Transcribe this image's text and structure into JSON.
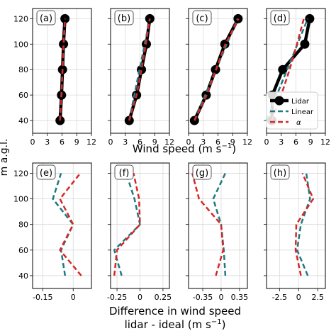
{
  "figure": {
    "ylabel": "m a.g.l.",
    "top_xlabel_main": "Wind speed (m s",
    "top_xlabel_sup": "−1",
    "top_xlabel_end": ")",
    "bottom_xlabel_line1": "Difference in wind speed",
    "bottom_xlabel_line2_main": "lidar - ideal (m s",
    "bottom_xlabel_line2_sup": "−1",
    "bottom_xlabel_line2_end": ")"
  },
  "colors": {
    "lidar": "#000000",
    "linear": "#1f7a80",
    "alpha": "#d62728",
    "grid": "#d9d9d9"
  },
  "legend": {
    "lidar": "Lidar",
    "linear": "Linear",
    "alpha": "α",
    "placement": "lower-right of panel (d)"
  },
  "chart_data": [
    {
      "type": "line",
      "panel": "(a)",
      "xlim": [
        0,
        12
      ],
      "ylim": [
        30,
        128
      ],
      "xticks": [
        0,
        3,
        6,
        9,
        12
      ],
      "xticklabels": [
        "0",
        "3",
        "6",
        "9",
        "12"
      ],
      "yticks": [
        40,
        60,
        80,
        100,
        120
      ],
      "yticklabels": [
        "40",
        "60",
        "80",
        "100",
        "120"
      ],
      "grid": true,
      "series": [
        {
          "name": "Lidar",
          "x": [
            5.6,
            5.9,
            6.1,
            6.3,
            6.6
          ],
          "y": [
            40,
            60,
            80,
            100,
            120
          ]
        },
        {
          "name": "Linear",
          "x": [
            5.6,
            5.85,
            6.1,
            6.35,
            6.6
          ],
          "y": [
            40,
            60,
            80,
            100,
            120
          ]
        },
        {
          "name": "α",
          "x": [
            5.6,
            5.9,
            6.1,
            6.3,
            6.6
          ],
          "y": [
            40,
            60,
            80,
            100,
            120
          ]
        }
      ]
    },
    {
      "type": "line",
      "panel": "(b)",
      "xlim": [
        0,
        12
      ],
      "ylim": [
        30,
        128
      ],
      "xticks": [
        0,
        3,
        6,
        9,
        12
      ],
      "xticklabels": [
        "0",
        "3",
        "6",
        "9",
        "12"
      ],
      "yticks": [
        40,
        60,
        80,
        100,
        120
      ],
      "yticklabels": [],
      "grid": true,
      "series": [
        {
          "name": "Lidar",
          "x": [
            3.8,
            5.3,
            6.3,
            7.3,
            8.0
          ],
          "y": [
            40,
            60,
            80,
            100,
            120
          ]
        },
        {
          "name": "Linear",
          "x": [
            3.8,
            4.85,
            5.9,
            6.95,
            8.0
          ],
          "y": [
            40,
            60,
            80,
            100,
            120
          ]
        },
        {
          "name": "α",
          "x": [
            3.8,
            5.3,
            6.3,
            7.2,
            8.0
          ],
          "y": [
            40,
            60,
            80,
            100,
            120
          ]
        }
      ]
    },
    {
      "type": "line",
      "panel": "(c)",
      "xlim": [
        0,
        12
      ],
      "ylim": [
        30,
        128
      ],
      "xticks": [
        0,
        3,
        6,
        9,
        12
      ],
      "xticklabels": [
        "0",
        "3",
        "6",
        "9",
        "12"
      ],
      "yticks": [
        40,
        60,
        80,
        100,
        120
      ],
      "yticklabels": [],
      "grid": true,
      "series": [
        {
          "name": "Lidar",
          "x": [
            1.2,
            3.6,
            5.5,
            7.4,
            10.1
          ],
          "y": [
            40,
            60,
            80,
            100,
            120
          ]
        },
        {
          "name": "Linear",
          "x": [
            1.2,
            3.4,
            5.6,
            7.8,
            10.0
          ],
          "y": [
            40,
            60,
            80,
            100,
            120
          ]
        },
        {
          "name": "α",
          "x": [
            1.2,
            3.7,
            5.6,
            7.5,
            10.2
          ],
          "y": [
            40,
            60,
            80,
            100,
            120
          ]
        }
      ]
    },
    {
      "type": "line",
      "panel": "(d)",
      "xlim": [
        0,
        12
      ],
      "ylim": [
        30,
        128
      ],
      "xticks": [
        0,
        3,
        6,
        9,
        12
      ],
      "xticklabels": [
        "0",
        "3",
        "6",
        "9",
        "12"
      ],
      "yticks": [
        40,
        60,
        80,
        100,
        120
      ],
      "yticklabels": [],
      "grid": true,
      "series": [
        {
          "name": "Lidar",
          "x": [
            1.1,
            1.2,
            3.3,
            7.8,
            8.8
          ],
          "y": [
            40,
            60,
            80,
            100,
            120
          ]
        },
        {
          "name": "Linear",
          "x": [
            0.0,
            2.1,
            4.2,
            6.3,
            8.4
          ],
          "y": [
            40,
            60,
            80,
            100,
            120
          ]
        },
        {
          "name": "α",
          "x": [
            1.1,
            3.0,
            4.7,
            6.2,
            7.6
          ],
          "y": [
            40,
            60,
            80,
            100,
            120
          ]
        }
      ]
    },
    {
      "type": "line",
      "panel": "(e)",
      "xlim": [
        -0.2,
        0.09
      ],
      "ylim": [
        30,
        128
      ],
      "xticks": [
        -0.15,
        0
      ],
      "xticklabels": [
        "-0.15",
        "0"
      ],
      "yticks": [
        40,
        60,
        80,
        100,
        120
      ],
      "yticklabels": [
        "40",
        "60",
        "80",
        "100",
        "120"
      ],
      "grid": true,
      "series": [
        {
          "name": "Linear",
          "x": [
            -0.04,
            -0.06,
            0.0,
            -0.1,
            -0.06
          ],
          "y": [
            40,
            60,
            80,
            100,
            120
          ]
        },
        {
          "name": "α",
          "x": [
            0.04,
            -0.065,
            0.0,
            -0.065,
            0.035
          ],
          "y": [
            40,
            60,
            80,
            100,
            120
          ]
        }
      ]
    },
    {
      "type": "line",
      "panel": "(f)",
      "xlim": [
        -0.32,
        0.32
      ],
      "ylim": [
        30,
        128
      ],
      "xticks": [
        -0.25,
        0,
        0.25
      ],
      "xticklabels": [
        "-0.25",
        "0",
        "0.25"
      ],
      "yticks": [
        40,
        60,
        80,
        100,
        120
      ],
      "yticklabels": [],
      "grid": true,
      "series": [
        {
          "name": "Linear",
          "x": [
            -0.2,
            -0.28,
            0.0,
            -0.06,
            -0.15
          ],
          "y": [
            40,
            60,
            80,
            100,
            120
          ]
        },
        {
          "name": "α",
          "x": [
            -0.28,
            -0.25,
            0.0,
            -0.01,
            -0.07
          ],
          "y": [
            40,
            60,
            80,
            100,
            120
          ]
        }
      ]
    },
    {
      "type": "line",
      "panel": "(g)",
      "xlim": [
        -0.62,
        0.5
      ],
      "ylim": [
        30,
        128
      ],
      "xticks": [
        -0.35,
        0,
        0.35
      ],
      "xticklabels": [
        "-0.35",
        "0",
        "0.35"
      ],
      "yticks": [
        40,
        60,
        80,
        100,
        120
      ],
      "yticklabels": [],
      "grid": true,
      "series": [
        {
          "name": "Linear",
          "x": [
            0.08,
            0.05,
            0.0,
            -0.15,
            0.08
          ],
          "y": [
            40,
            60,
            80,
            100,
            120
          ]
        },
        {
          "name": "α",
          "x": [
            -0.1,
            0.04,
            0.0,
            -0.42,
            -0.55
          ],
          "y": [
            40,
            60,
            80,
            100,
            120
          ]
        }
      ]
    },
    {
      "type": "line",
      "panel": "(h)",
      "xlim": [
        -4.2,
        3.5
      ],
      "ylim": [
        30,
        128
      ],
      "xticks": [
        -2.5,
        0,
        2.5
      ],
      "xticklabels": [
        "-2.5",
        "0",
        "2.5"
      ],
      "yticks": [
        40,
        60,
        80,
        100,
        120
      ],
      "yticklabels": [],
      "grid": true,
      "series": [
        {
          "name": "Linear",
          "x": [
            1.2,
            -0.2,
            0.3,
            1.5,
            1.0
          ],
          "y": [
            40,
            60,
            80,
            100,
            120
          ]
        },
        {
          "name": "α",
          "x": [
            0.3,
            -0.4,
            -0.3,
            1.9,
            0.5
          ],
          "y": [
            40,
            60,
            80,
            100,
            120
          ]
        }
      ]
    }
  ]
}
